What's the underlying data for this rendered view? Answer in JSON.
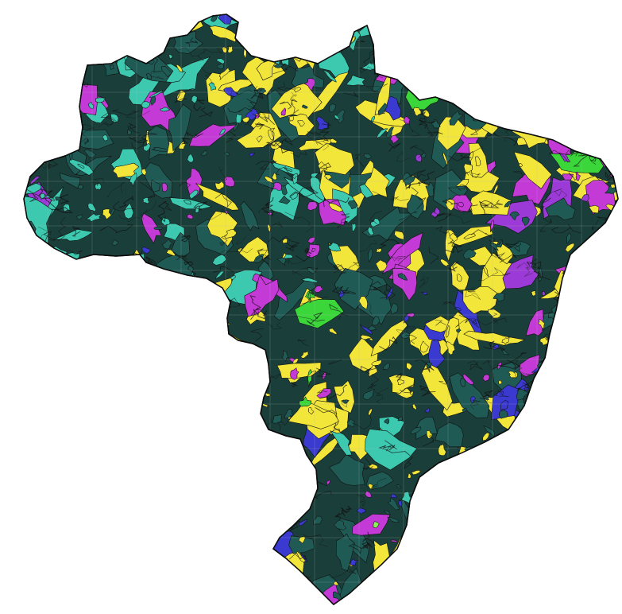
{
  "map": {
    "subject": "geologic-map-brazil",
    "unit_palette": {
      "yellow": "#f2e63a",
      "teal": "#3cc9b0",
      "dark_teal": "#1f5a55",
      "magenta": "#c43ad6",
      "purple": "#9b3ad6",
      "blue": "#3a3ad0",
      "green": "#3ad63a",
      "light_green": "#8cf25a",
      "red": "#d63a3a",
      "outline": "#111111"
    }
  }
}
